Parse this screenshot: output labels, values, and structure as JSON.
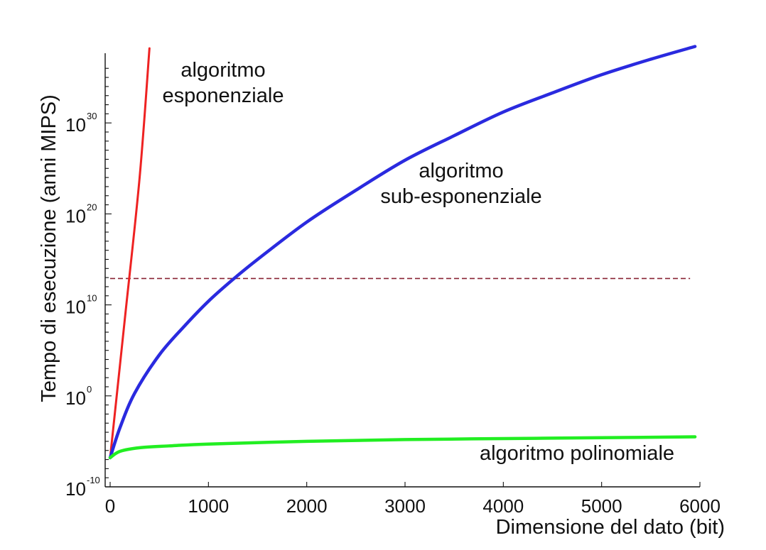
{
  "chart_data": {
    "type": "line",
    "title": "",
    "xlabel": "Dimensione del dato (bit)",
    "ylabel": "Tempo di  esecuzione  (anni MIPS)",
    "xlim": [
      0,
      6000
    ],
    "ylim_log10": [
      -10,
      40
    ],
    "yscale": "log",
    "grid": false,
    "x_ticks": [
      "0",
      "1000",
      "2000",
      "3000",
      "4000",
      "5000",
      "6000"
    ],
    "y_ticks": [
      {
        "base": "10",
        "exp": "-10"
      },
      {
        "base": "10",
        "exp": "0"
      },
      {
        "base": "10",
        "exp": "10"
      },
      {
        "base": "10",
        "exp": "20"
      },
      {
        "base": "10",
        "exp": "30"
      }
    ],
    "series": [
      {
        "label": [
          "algoritmo",
          "esponenziale"
        ],
        "color": "#ee2222",
        "x": [
          0,
          150,
          300,
          400
        ],
        "log10_y": [
          -6.8,
          8.5,
          24.0,
          38.2
        ]
      },
      {
        "label": [
          "algoritmo",
          "sub-esponenziale"
        ],
        "color": "#2a2adf",
        "x": [
          0,
          100,
          250,
          500,
          750,
          1000,
          1250,
          1500,
          2000,
          2500,
          3000,
          3500,
          4000,
          4500,
          5000,
          5500,
          5950
        ],
        "log10_y": [
          -6.8,
          -3.5,
          0.3,
          4.5,
          7.6,
          10.4,
          12.8,
          15.0,
          19.1,
          22.6,
          25.9,
          28.6,
          31.2,
          33.3,
          35.3,
          37.0,
          38.4
        ]
      },
      {
        "label": [
          "algoritmo polinomiale"
        ],
        "color": "#22ee22",
        "x": [
          0,
          100,
          300,
          600,
          1000,
          2000,
          3000,
          4000,
          5000,
          5950
        ],
        "log10_y": [
          -6.8,
          -6.1,
          -5.7,
          -5.5,
          -5.3,
          -5.0,
          -4.8,
          -4.7,
          -4.6,
          -4.5
        ]
      }
    ],
    "reference_line": {
      "color": "#882233",
      "style": "dashed",
      "log10_y": 12.9,
      "x_range": [
        0,
        5900
      ]
    }
  }
}
